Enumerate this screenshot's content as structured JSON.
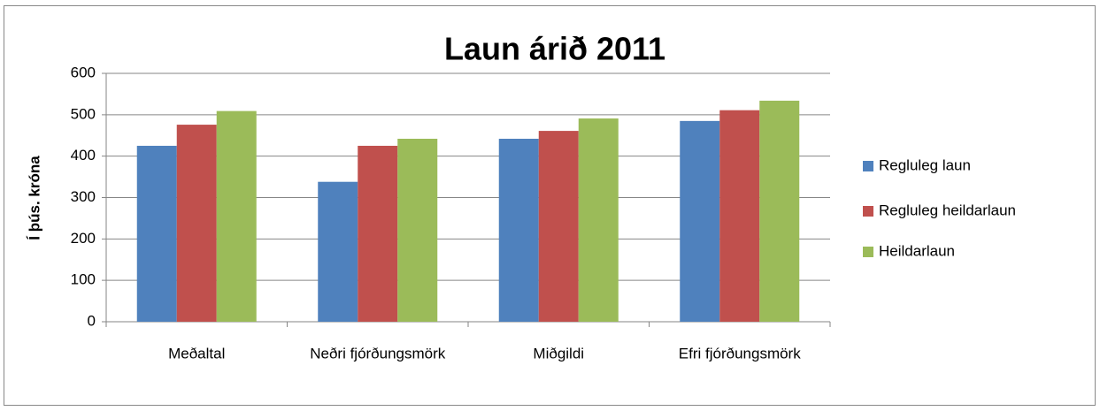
{
  "chart_data": {
    "type": "bar",
    "title": "Laun árið 2011",
    "y_label": "Í þús. króna",
    "categories": [
      "Meðaltal",
      "Neðri fjórðungsmörk",
      "Miðgildi",
      "Efri fjórðungsmörk"
    ],
    "series": [
      {
        "name": "Regluleg laun",
        "color": "#4f81bd",
        "values": [
          425,
          338,
          442,
          485
        ]
      },
      {
        "name": "Regluleg heildarlaun",
        "color": "#c0504d",
        "values": [
          476,
          425,
          461,
          511
        ]
      },
      {
        "name": "Heildarlaun",
        "color": "#9bbb59",
        "values": [
          509,
          442,
          491,
          534
        ]
      }
    ],
    "ylim": [
      0,
      600
    ],
    "yticks": [
      0,
      100,
      200,
      300,
      400,
      500,
      600
    ],
    "grid": true,
    "legend": "right"
  }
}
